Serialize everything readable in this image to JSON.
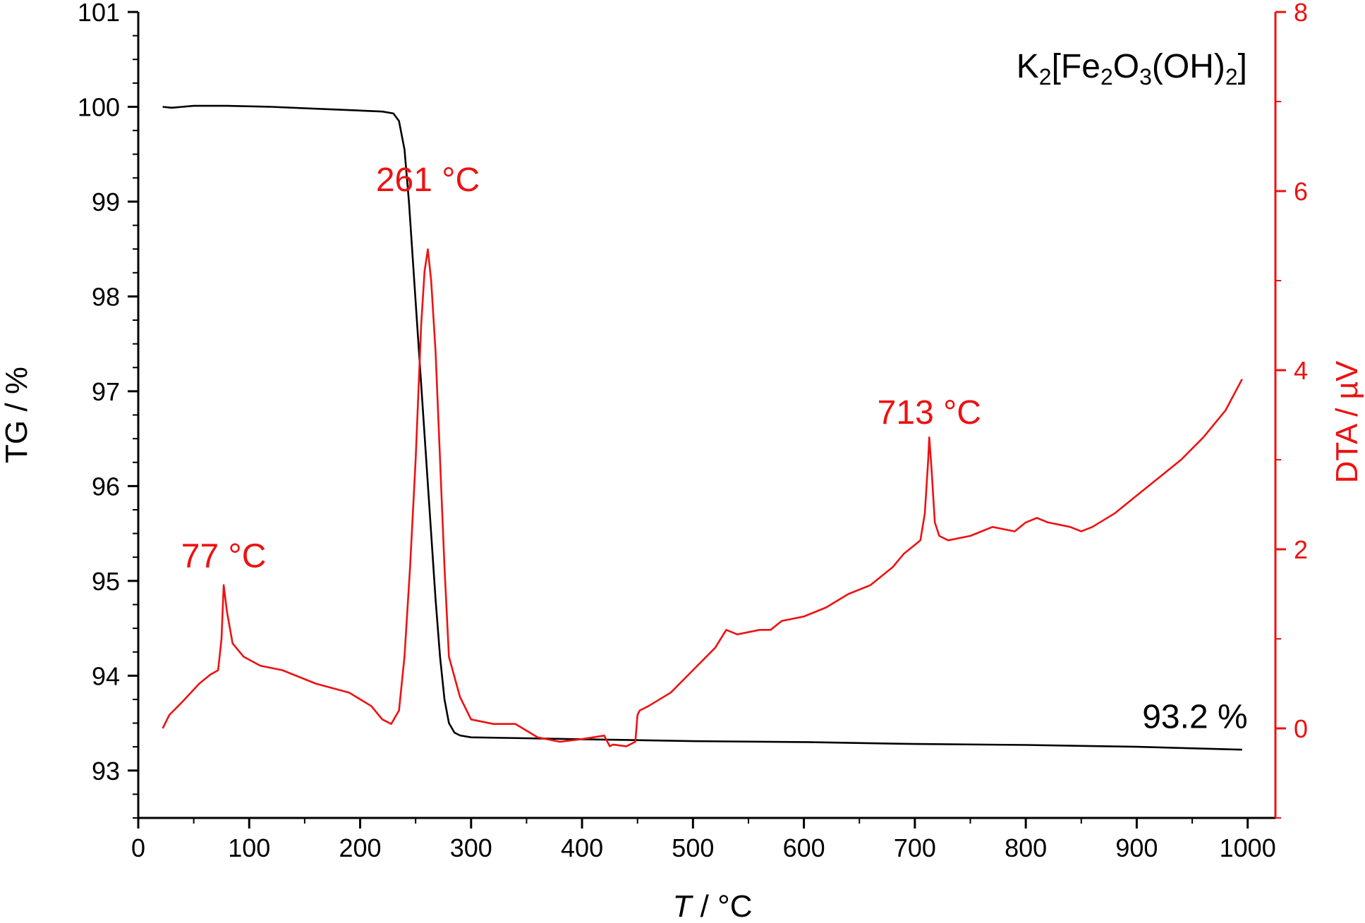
{
  "chart_data": {
    "type": "line",
    "title": "",
    "xlabel_italic": "T",
    "xlabel_rest": " / °C",
    "ylabel_left": "TG / %",
    "ylabel_right": "DTA / µV",
    "xlim": [
      0,
      1025
    ],
    "ylim_left": [
      92.5,
      101
    ],
    "ylim_right": [
      -1,
      8
    ],
    "x_ticks": [
      0,
      100,
      200,
      300,
      400,
      500,
      600,
      700,
      800,
      900,
      1000
    ],
    "y_left_ticks": [
      93,
      94,
      95,
      96,
      97,
      98,
      99,
      100,
      101
    ],
    "y_right_ticks": [
      0,
      2,
      4,
      6,
      8
    ],
    "compound_label": {
      "parts": [
        {
          "t": "K"
        },
        {
          "t": "2",
          "sub": true
        },
        {
          "t": "[Fe"
        },
        {
          "t": "2",
          "sub": true
        },
        {
          "t": "O"
        },
        {
          "t": "3",
          "sub": true
        },
        {
          "t": "(OH)"
        },
        {
          "t": "2",
          "sub": true
        },
        {
          "t": "]"
        }
      ]
    },
    "annotations": [
      {
        "text": "261 °C",
        "x": 261,
        "y": 6.0,
        "axis": "right",
        "color": "#ee1111"
      },
      {
        "text": "77 °C",
        "x": 77,
        "y": 1.8,
        "axis": "right",
        "color": "#ee1111"
      },
      {
        "text": "713 °C",
        "x": 713,
        "y": 3.4,
        "axis": "right",
        "color": "#ee1111"
      },
      {
        "text": "93.2 %",
        "x": 1000,
        "y": 93.45,
        "axis": "left",
        "color": "#000000",
        "anchor": "end"
      }
    ],
    "series": [
      {
        "axis": "left",
        "color": "#000000",
        "x": [
          22,
          30,
          50,
          80,
          120,
          160,
          200,
          220,
          230,
          235,
          240,
          244,
          248,
          252,
          256,
          260,
          264,
          268,
          272,
          276,
          280,
          285,
          290,
          300,
          350,
          400,
          450,
          500,
          600,
          700,
          800,
          900,
          995
        ],
        "y": [
          100.0,
          99.99,
          100.01,
          100.01,
          100.0,
          99.98,
          99.96,
          99.95,
          99.93,
          99.85,
          99.55,
          99.0,
          98.3,
          97.6,
          96.9,
          96.2,
          95.5,
          94.8,
          94.2,
          93.75,
          93.5,
          93.4,
          93.37,
          93.35,
          93.34,
          93.33,
          93.32,
          93.31,
          93.3,
          93.28,
          93.27,
          93.25,
          93.22
        ]
      },
      {
        "axis": "right",
        "color": "#ee1111",
        "x": [
          22,
          28,
          40,
          55,
          65,
          72,
          75,
          77,
          80,
          85,
          95,
          110,
          130,
          160,
          190,
          210,
          220,
          228,
          235,
          240,
          245,
          250,
          255,
          258,
          261,
          264,
          268,
          272,
          276,
          280,
          290,
          300,
          320,
          340,
          360,
          380,
          400,
          420,
          425,
          428,
          440,
          448,
          450,
          452,
          460,
          480,
          500,
          520,
          530,
          540,
          560,
          570,
          580,
          600,
          620,
          640,
          660,
          680,
          690,
          700,
          705,
          709,
          712,
          713,
          715,
          718,
          722,
          730,
          750,
          770,
          790,
          800,
          810,
          820,
          840,
          850,
          860,
          880,
          900,
          920,
          940,
          960,
          980,
          995
        ],
        "y": [
          0.0,
          0.15,
          0.3,
          0.5,
          0.6,
          0.65,
          1.0,
          1.6,
          1.3,
          0.95,
          0.8,
          0.7,
          0.65,
          0.5,
          0.4,
          0.25,
          0.1,
          0.05,
          0.2,
          0.8,
          1.8,
          3.0,
          4.5,
          5.1,
          5.35,
          5.0,
          4.2,
          3.0,
          1.8,
          0.8,
          0.35,
          0.1,
          0.05,
          0.05,
          -0.1,
          -0.15,
          -0.12,
          -0.08,
          -0.2,
          -0.18,
          -0.2,
          -0.15,
          0.15,
          0.2,
          0.25,
          0.4,
          0.65,
          0.9,
          1.1,
          1.05,
          1.1,
          1.1,
          1.2,
          1.25,
          1.35,
          1.5,
          1.6,
          1.8,
          1.95,
          2.05,
          2.1,
          2.4,
          3.0,
          3.25,
          2.9,
          2.3,
          2.15,
          2.1,
          2.15,
          2.25,
          2.2,
          2.3,
          2.35,
          2.3,
          2.25,
          2.2,
          2.25,
          2.4,
          2.6,
          2.8,
          3.0,
          3.25,
          3.55,
          3.9
        ]
      }
    ]
  }
}
